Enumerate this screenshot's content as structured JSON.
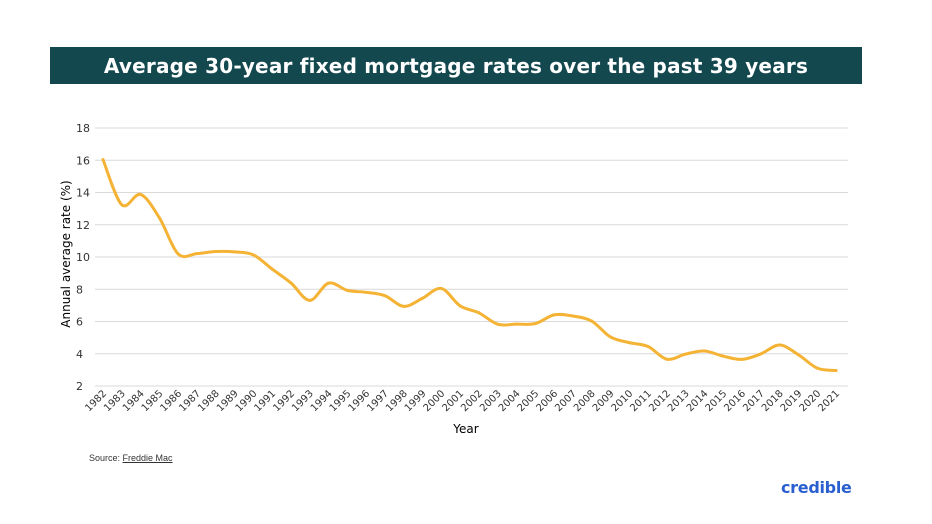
{
  "colors": {
    "header_bg": "#14484f",
    "header_text": "#ffffff",
    "line": "#f5b335",
    "grid": "#d9d9d9",
    "axis_text": "#333333",
    "brand": "#2a5fd0"
  },
  "source": {
    "label": "Source: ",
    "link_text": "Freddie Mac"
  },
  "brand": {
    "name": "credible"
  },
  "chart_data": {
    "type": "line",
    "title": "Average 30-year fixed mortgage rates over the past 39 years",
    "xlabel": "Year",
    "ylabel": "Annual average rate (%)",
    "ylim": [
      2,
      18
    ],
    "yticks": [
      2,
      4,
      6,
      8,
      10,
      12,
      14,
      16,
      18
    ],
    "grid": true,
    "x": [
      "1982",
      "1983",
      "1984",
      "1985",
      "1986",
      "1987",
      "1988",
      "1989",
      "1990",
      "1991",
      "1992",
      "1993",
      "1994",
      "1995",
      "1996",
      "1997",
      "1998",
      "1999",
      "2000",
      "2001",
      "2002",
      "2003",
      "2004",
      "2005",
      "2006",
      "2007",
      "2008",
      "2009",
      "2010",
      "2011",
      "2012",
      "2013",
      "2014",
      "2015",
      "2016",
      "2017",
      "2018",
      "2019",
      "2020",
      "2021"
    ],
    "series": [
      {
        "values": [
          16.04,
          13.24,
          13.88,
          12.43,
          10.19,
          10.21,
          10.34,
          10.32,
          10.13,
          9.25,
          8.39,
          7.31,
          8.38,
          7.93,
          7.81,
          7.6,
          6.94,
          7.44,
          8.05,
          6.97,
          6.54,
          5.83,
          5.84,
          5.87,
          6.41,
          6.34,
          6.03,
          5.04,
          4.69,
          4.45,
          3.66,
          3.98,
          4.17,
          3.85,
          3.65,
          3.99,
          4.54,
          3.94,
          3.11,
          2.96
        ]
      }
    ]
  }
}
